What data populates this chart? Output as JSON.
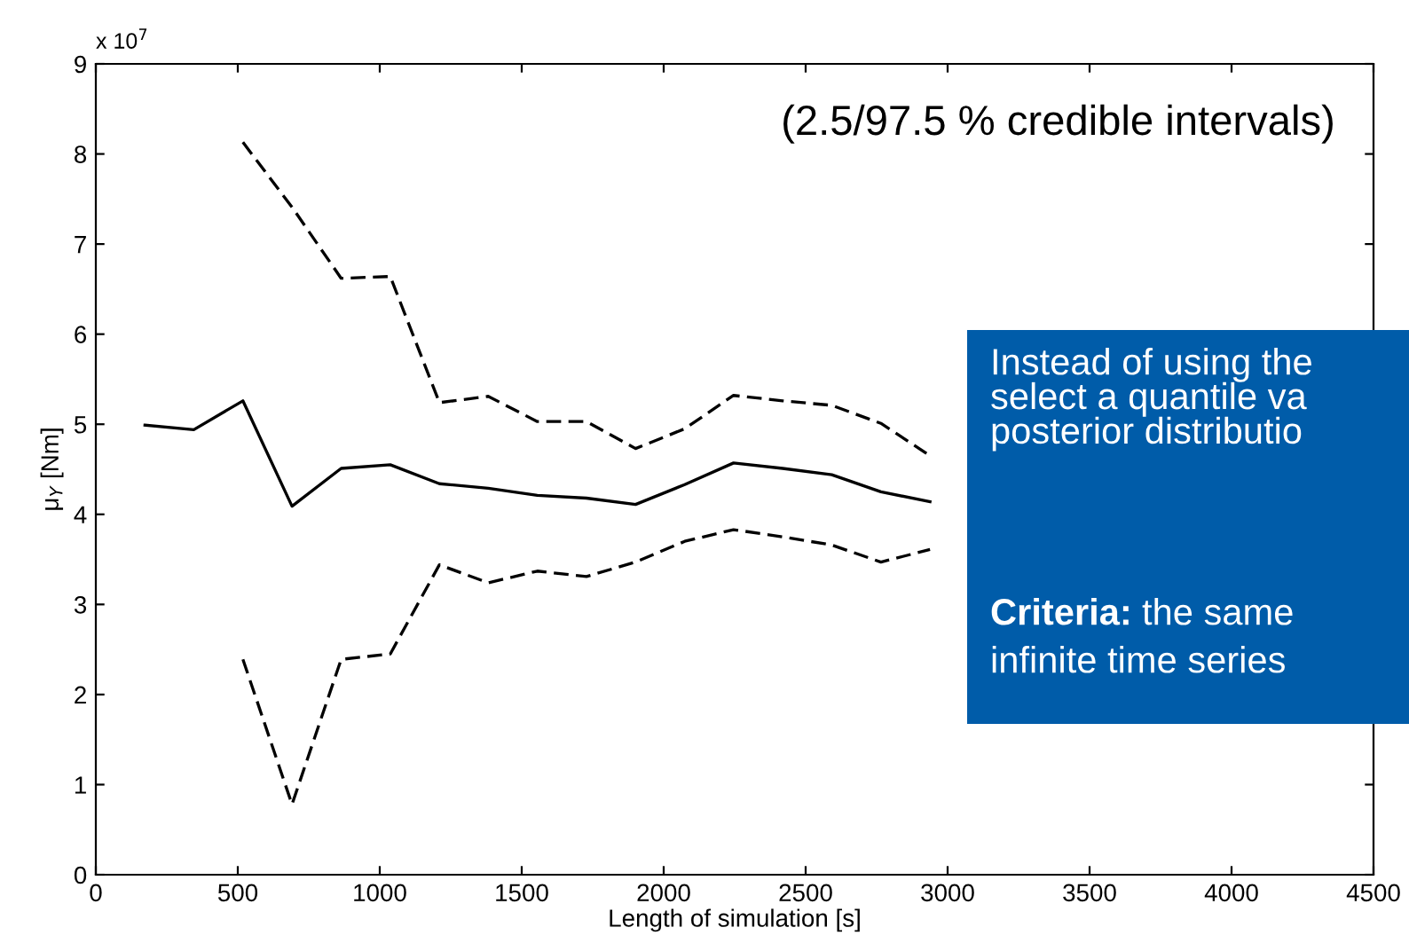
{
  "chart_data": {
    "type": "line",
    "xlabel": "Length of simulation [s]",
    "ylabel": "μ$_{Y}$ [Nm]",
    "xlim": [
      0,
      4500
    ],
    "xticks": [
      0,
      500,
      1000,
      1500,
      2000,
      2500,
      3000,
      3500,
      4000,
      4500
    ],
    "ylim": [
      0,
      9
    ],
    "yticks": [
      0,
      1,
      2,
      3,
      4,
      5,
      6,
      7,
      8,
      9
    ],
    "grid": false,
    "legend": false,
    "marker": "none",
    "series": [
      {
        "color": "#000000",
        "line_style": "solid",
        "x": [
          173,
          345,
          518,
          691,
          864,
          1037,
          1210,
          1382,
          1555,
          1728,
          1901,
          2074,
          2246,
          2419,
          2592,
          2765,
          2938
        ],
        "values": [
          4.99,
          4.94,
          5.26,
          4.09,
          4.51,
          4.55,
          4.34,
          4.29,
          4.21,
          4.18,
          4.11,
          4.33,
          4.57,
          4.51,
          4.44,
          4.25,
          4.14
        ]
      },
      {
        "color": "#000000",
        "line_style": "dashed",
        "x": [
          518,
          691,
          864,
          1037,
          1210,
          1382,
          1555,
          1728,
          1901,
          2074,
          2246,
          2419,
          2592,
          2765,
          2938
        ],
        "values": [
          8.13,
          7.41,
          6.62,
          6.64,
          5.24,
          5.31,
          5.03,
          5.03,
          4.73,
          4.95,
          5.32,
          5.26,
          5.21,
          5.01,
          4.65
        ]
      },
      {
        "color": "#000000",
        "line_style": "dashed",
        "x": [
          518,
          691,
          864,
          1037,
          1210,
          1382,
          1555,
          1728,
          1901,
          2074,
          2246,
          2419,
          2592,
          2765,
          2938
        ],
        "values": [
          2.39,
          0.78,
          2.39,
          2.45,
          3.44,
          3.24,
          3.37,
          3.31,
          3.47,
          3.7,
          3.83,
          3.75,
          3.66,
          3.47,
          3.61
        ]
      }
    ],
    "annotations": [
      "x 10$^{7}$",
      "(2.5/97.5 % credible intervals)",
      "Instead of using the\nselect a quantile va\nposterior distributio",
      "Criteria:",
      "the same",
      "infinite time series"
    ]
  }
}
